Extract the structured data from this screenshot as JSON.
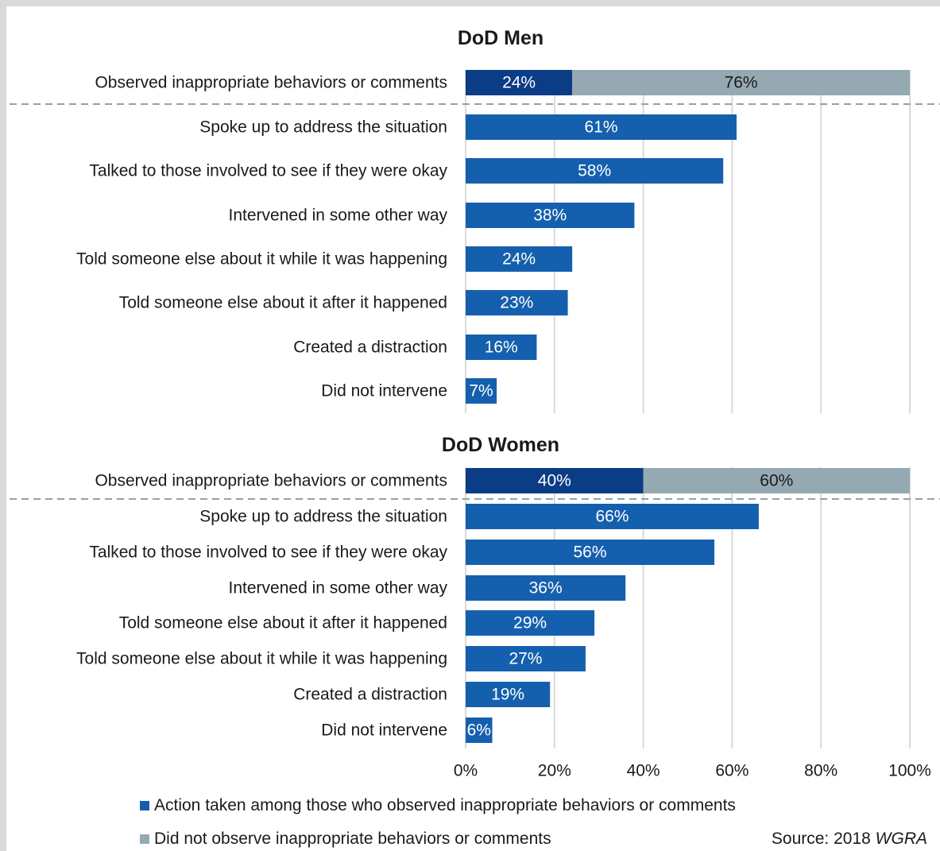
{
  "chart_data": [
    {
      "type": "bar",
      "orientation": "horizontal",
      "stacked_first_row": true,
      "title": "DoD Men",
      "xlim": [
        0,
        100
      ],
      "categories": [
        "Observed inappropriate behaviors or comments",
        "Spoke up to address the situation",
        "Talked to those involved to see if they were okay",
        "Intervened in some other way",
        "Told someone else about it while it was happening",
        "Told someone else about it after it happened",
        "Created a distraction",
        "Did not intervene"
      ],
      "series": [
        {
          "name": "Action taken among those who observed inappropriate behaviors or comments",
          "values": [
            24,
            61,
            58,
            38,
            24,
            23,
            16,
            7
          ]
        },
        {
          "name": "Did not observe inappropriate behaviors or comments",
          "values": [
            76,
            null,
            null,
            null,
            null,
            null,
            null,
            null
          ]
        }
      ],
      "data_labels": [
        [
          "24%",
          "61%",
          "58%",
          "38%",
          "24%",
          "23%",
          "16%",
          "7%"
        ],
        [
          "76%"
        ]
      ]
    },
    {
      "type": "bar",
      "orientation": "horizontal",
      "stacked_first_row": true,
      "title": "DoD Women",
      "xlim": [
        0,
        100
      ],
      "categories": [
        "Observed inappropriate behaviors or comments",
        "Spoke up to address the situation",
        "Talked to those involved to see if they were okay",
        "Intervened in some other way",
        "Told someone else about it after it happened",
        "Told someone else about it while it was happening",
        "Created a distraction",
        "Did not intervene"
      ],
      "series": [
        {
          "name": "Action taken among those who observed inappropriate behaviors or comments",
          "values": [
            40,
            66,
            56,
            36,
            29,
            27,
            19,
            6
          ]
        },
        {
          "name": "Did not observe inappropriate behaviors or comments",
          "values": [
            60,
            null,
            null,
            null,
            null,
            null,
            null,
            null
          ]
        }
      ],
      "data_labels": [
        [
          "40%",
          "66%",
          "56%",
          "36%",
          "29%",
          "27%",
          "19%",
          "6%"
        ],
        [
          "60%"
        ]
      ]
    }
  ],
  "x_ticks": [
    "0%",
    "20%",
    "40%",
    "60%",
    "80%",
    "100%"
  ],
  "legend": {
    "observed_label": "Action taken among those who observed inappropriate behaviors or comments",
    "not_observed_label": "Did not observe inappropriate behaviors or comments"
  },
  "source": {
    "prefix": "Source: 2018",
    "name": "WGRA"
  },
  "colors": {
    "observed_dark": "#0b3c86",
    "action": "#1560ae",
    "not_observed": "#95a9b2",
    "grid": "#d9d9d9",
    "dashed": "#8ea3ad"
  }
}
